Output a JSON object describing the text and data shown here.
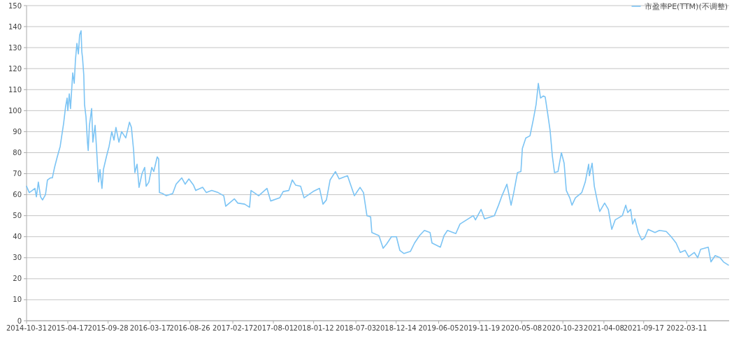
{
  "chart_data": {
    "type": "line",
    "x": [
      "2014-10-31",
      "2014-11-11",
      "2014-11-23",
      "2014-12-04",
      "2014-12-10",
      "2014-12-18",
      "2014-12-27",
      "2015-01-04",
      "2015-01-16",
      "2015-01-24",
      "2015-02-05",
      "2015-02-13",
      "2015-02-22",
      "2015-03-05",
      "2015-03-17",
      "2015-03-22",
      "2015-03-31",
      "2015-04-08",
      "2015-04-14",
      "2015-04-17",
      "2015-04-23",
      "2015-04-28",
      "2015-05-07",
      "2015-05-13",
      "2015-05-18",
      "2015-05-24",
      "2015-05-30",
      "2015-06-04",
      "2015-06-10",
      "2015-06-13",
      "2015-06-16",
      "2015-06-21",
      "2015-06-24",
      "2015-06-30",
      "2015-07-06",
      "2015-07-09",
      "2015-07-14",
      "2015-07-23",
      "2015-07-28",
      "2015-08-06",
      "2015-08-12",
      "2015-08-20",
      "2015-08-26",
      "2015-09-03",
      "2015-09-09",
      "2015-09-21",
      "2015-10-02",
      "2015-10-13",
      "2015-10-22",
      "2015-10-30",
      "2015-11-11",
      "2015-11-22",
      "2015-12-09",
      "2015-12-24",
      "2016-01-01",
      "2016-01-10",
      "2016-01-15",
      "2016-01-24",
      "2016-02-01",
      "2016-02-13",
      "2016-02-24",
      "2016-03-01",
      "2016-03-12",
      "2016-03-24",
      "2016-04-01",
      "2016-04-15",
      "2016-04-21",
      "2016-04-24",
      "2016-05-08",
      "2016-05-22",
      "2016-06-17",
      "2016-07-01",
      "2016-07-24",
      "2016-08-07",
      "2016-08-22",
      "2016-09-10",
      "2016-09-19",
      "2016-10-17",
      "2016-11-01",
      "2016-11-23",
      "2016-12-19",
      "2017-01-11",
      "2017-01-19",
      "2017-02-23",
      "2017-03-09",
      "2017-04-06",
      "2017-04-26",
      "2017-05-02",
      "2017-06-02",
      "2017-07-06",
      "2017-07-21",
      "2017-08-27",
      "2017-09-10",
      "2017-10-03",
      "2017-10-17",
      "2017-10-31",
      "2017-11-20",
      "2017-12-04",
      "2018-01-10",
      "2018-02-05",
      "2018-02-19",
      "2018-03-05",
      "2018-03-20",
      "2018-04-11",
      "2018-04-26",
      "2018-05-18",
      "2018-05-30",
      "2018-06-27",
      "2018-07-20",
      "2018-08-03",
      "2018-08-17",
      "2018-09-01",
      "2018-09-06",
      "2018-10-05",
      "2018-10-22",
      "2018-11-05",
      "2018-11-25",
      "2018-12-15",
      "2018-12-29",
      "2019-01-15",
      "2019-02-10",
      "2019-02-27",
      "2019-03-19",
      "2019-04-08",
      "2019-05-01",
      "2019-05-09",
      "2019-06-12",
      "2019-06-27",
      "2019-07-11",
      "2019-08-14",
      "2019-08-31",
      "2019-10-24",
      "2019-11-02",
      "2019-11-25",
      "2019-12-09",
      "2020-01-18",
      "2020-02-04",
      "2020-02-18",
      "2020-03-09",
      "2020-03-26",
      "2020-04-06",
      "2020-04-21",
      "2020-05-05",
      "2020-05-11",
      "2020-05-25",
      "2020-06-11",
      "2020-06-25",
      "2020-07-06",
      "2020-07-15",
      "2020-07-24",
      "2020-08-04",
      "2020-08-12",
      "2020-08-21",
      "2020-09-01",
      "2020-09-10",
      "2020-09-19",
      "2020-10-03",
      "2020-10-17",
      "2020-10-28",
      "2020-11-06",
      "2020-11-20",
      "2020-11-29",
      "2020-12-13",
      "2021-01-08",
      "2021-01-22",
      "2021-02-05",
      "2021-02-08",
      "2021-02-19",
      "2021-02-28",
      "2021-03-14",
      "2021-03-22",
      "2021-04-11",
      "2021-04-26",
      "2021-05-10",
      "2021-05-24",
      "2021-06-22",
      "2021-07-06",
      "2021-07-14",
      "2021-07-26",
      "2021-08-03",
      "2021-08-12",
      "2021-08-26",
      "2021-09-09",
      "2021-09-21",
      "2021-10-05",
      "2021-11-02",
      "2021-11-20",
      "2021-12-18",
      "2022-01-07",
      "2022-01-27",
      "2022-02-13",
      "2022-03-05",
      "2022-03-19",
      "2022-04-11",
      "2022-04-25",
      "2022-05-07",
      "2022-06-07",
      "2022-06-18",
      "2022-07-05",
      "2022-07-25",
      "2022-08-08",
      "2022-08-28"
    ],
    "series": [
      {
        "name": "市盈率PE(TTM)(不调整)",
        "color": "#7cc4f4",
        "values": [
          64,
          61,
          62,
          63,
          59,
          66,
          59,
          57.5,
          60,
          67,
          68,
          68,
          73,
          78,
          83,
          87,
          94,
          102,
          106,
          100,
          108,
          101,
          118,
          113,
          124,
          132,
          127,
          136,
          138,
          128,
          125,
          117,
          103,
          97,
          85,
          81,
          93,
          101,
          85,
          93,
          82,
          66,
          72,
          63,
          72,
          78,
          83,
          90,
          86,
          92,
          85,
          90,
          87,
          94.5,
          92,
          81,
          70.5,
          74.5,
          63.5,
          70,
          73,
          64,
          66,
          73,
          71,
          78,
          77,
          61,
          60.5,
          59.5,
          60.5,
          65,
          68,
          65,
          67.5,
          64.5,
          62,
          63.5,
          61,
          62,
          61,
          59.5,
          54.5,
          58,
          56,
          55.5,
          54,
          62,
          59.5,
          63,
          57,
          58.5,
          61.5,
          62,
          67,
          64.5,
          64,
          58.5,
          61.5,
          63,
          55.5,
          57.5,
          67,
          71,
          67.5,
          68.5,
          69,
          59.5,
          63.5,
          61,
          50,
          49.5,
          42,
          40.5,
          34.5,
          36.5,
          40,
          40,
          33.5,
          32,
          33,
          37,
          40.5,
          43,
          42,
          37,
          35,
          40.5,
          43,
          41.5,
          46,
          50,
          48,
          53,
          48.5,
          50,
          55,
          59.5,
          65,
          55,
          61,
          70.5,
          71,
          82,
          87,
          88,
          96,
          103,
          113,
          106,
          107,
          106.5,
          99.5,
          90.5,
          78.5,
          70.5,
          71,
          80,
          75,
          62,
          58.5,
          55,
          58.5,
          61,
          66,
          74.5,
          69,
          75,
          64,
          56,
          52,
          56,
          53,
          43.5,
          48,
          50,
          55,
          51.5,
          53,
          46,
          48.5,
          42,
          38.5,
          39.5,
          43.5,
          42,
          43,
          42.5,
          40,
          37,
          32.5,
          33.5,
          30.5,
          32.5,
          30,
          34,
          35,
          28,
          31,
          30,
          28,
          26.5
        ]
      }
    ],
    "xlim": [
      "2014-10-31",
      "2022-08-31"
    ],
    "xticks": [
      "2014-10-31",
      "2015-04-17",
      "2015-09-28",
      "2016-03-17",
      "2016-08-26",
      "2017-02-17",
      "2017-08-01",
      "2018-01-12",
      "2018-07-03",
      "2018-12-14",
      "2019-06-05",
      "2019-11-19",
      "2020-05-08",
      "2020-10-23",
      "2021-04-08",
      "2021-09-17",
      "2022-03-11"
    ],
    "ylim": [
      0,
      150
    ],
    "yticks": [
      0,
      10,
      20,
      30,
      40,
      50,
      60,
      70,
      80,
      90,
      100,
      110,
      120,
      130,
      140,
      150
    ],
    "grid": "y",
    "legend": "top right",
    "marker": "none",
    "line_style": "solid"
  }
}
